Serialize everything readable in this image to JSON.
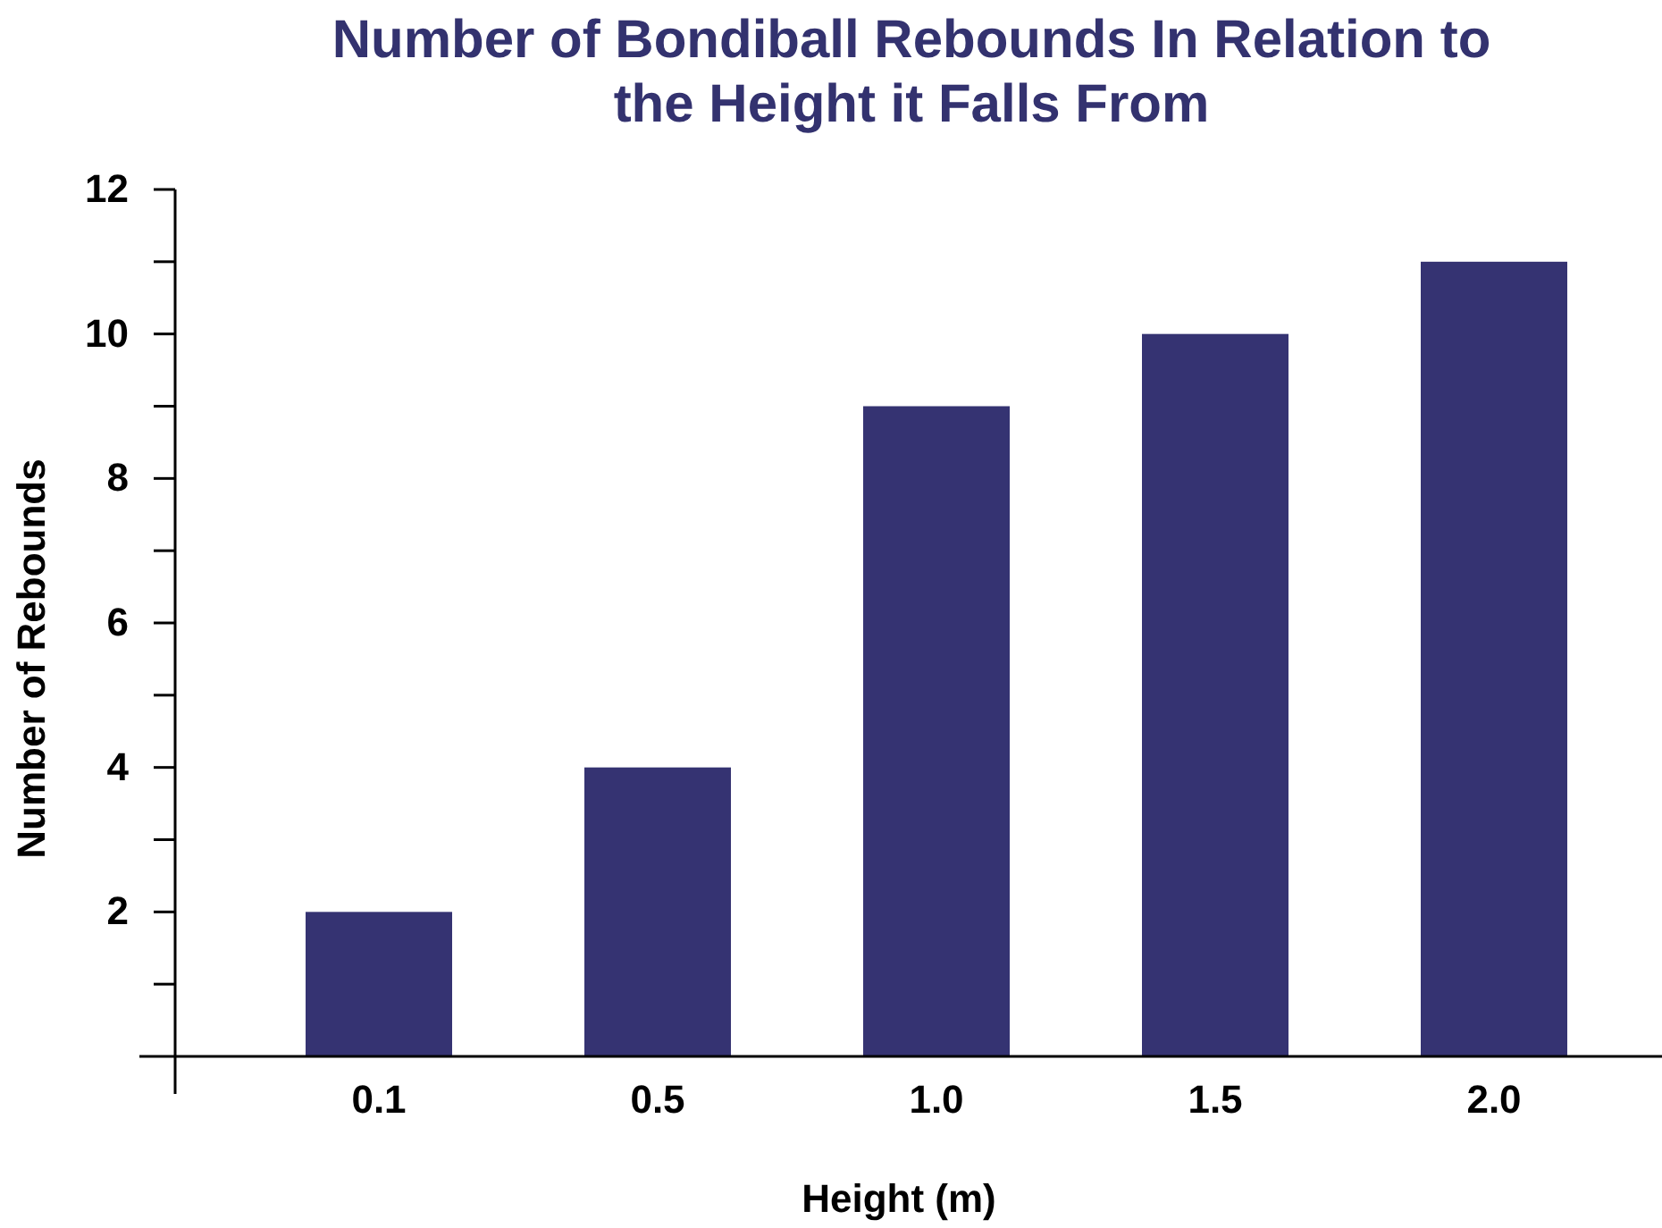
{
  "chart_data": {
    "type": "bar",
    "title": "Number of Bondiball Rebounds In Relation to the Height it Falls From",
    "xlabel": "Height (m)",
    "ylabel": "Number of Rebounds",
    "categories": [
      "0.1",
      "0.5",
      "1.0",
      "1.5",
      "2.0"
    ],
    "values": [
      2,
      4,
      9,
      10,
      11
    ],
    "color": "#353372",
    "ylim": [
      0,
      12
    ],
    "yticks": [
      {
        "value": 1,
        "label": null
      },
      2,
      {
        "value": 3,
        "label": null
      },
      4,
      {
        "value": 5,
        "label": null
      },
      6,
      {
        "value": 7,
        "label": null
      },
      8,
      {
        "value": 9,
        "label": null
      },
      10,
      {
        "value": 11,
        "label": null
      },
      12
    ],
    "grid": false,
    "legend": false
  }
}
